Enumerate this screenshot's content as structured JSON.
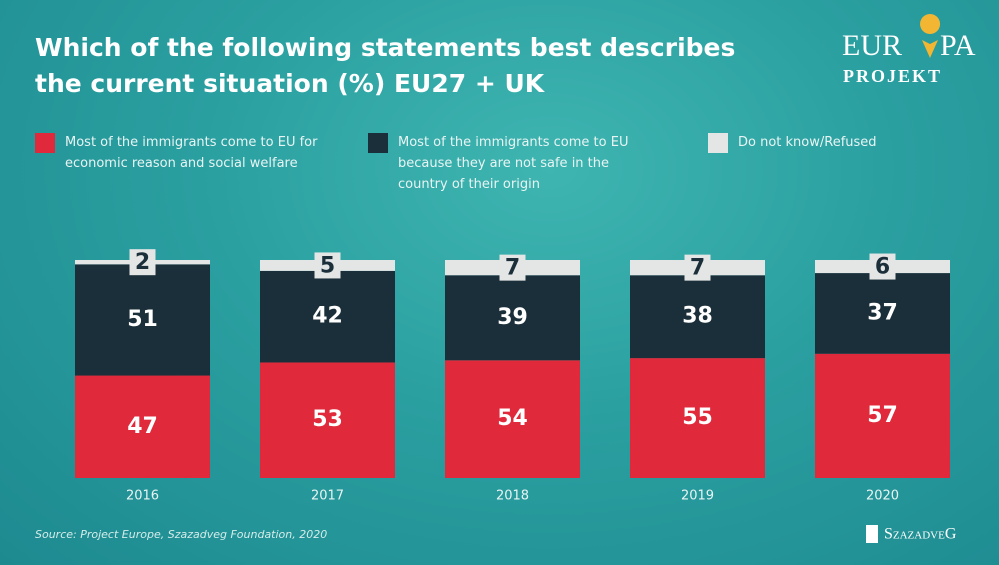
{
  "chart_data": {
    "type": "stacked_bar",
    "title": "Which of the following statements best describes the current situation (%) EU27 + UK",
    "categories": [
      "2016",
      "2017",
      "2018",
      "2019",
      "2020"
    ],
    "series": [
      {
        "name": "Most of the immigrants come to EU for economic reason and social welfare",
        "color": "#e0293b",
        "values": [
          47,
          53,
          54,
          55,
          57
        ]
      },
      {
        "name": "Most of the immigrants come to EU because they are not safe in the country of their origin",
        "color": "#1b2f3a",
        "values": [
          51,
          42,
          39,
          38,
          37
        ]
      },
      {
        "name": "Do not know/Refused",
        "color": "#e4e6e6",
        "values": [
          2,
          5,
          7,
          7,
          6
        ]
      }
    ],
    "source": "Source: Project Europe, Szazadveg Foundation, 2020",
    "logo": {
      "left": "EUR",
      "right": "PA",
      "bottom": "PROJEKT"
    },
    "footer_logo": "SzazadveG"
  }
}
